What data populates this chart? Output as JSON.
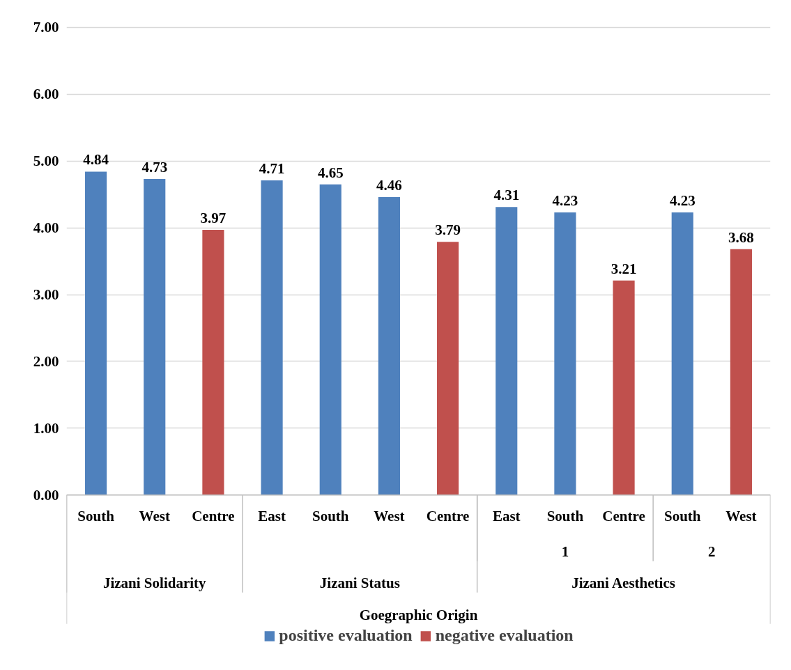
{
  "chart_data": {
    "type": "bar",
    "categories": [
      "South",
      "West",
      "Centre",
      "East",
      "South",
      "West",
      "Centre",
      "East",
      "South",
      "Centre",
      "South",
      "West"
    ],
    "series": [
      {
        "name": "positive evaluation",
        "color": "#4f81bd",
        "values": [
          4.84,
          4.73,
          null,
          4.71,
          4.65,
          4.46,
          null,
          4.31,
          4.23,
          null,
          4.23,
          null
        ]
      },
      {
        "name": "negative evaluation",
        "color": "#c0504d",
        "values": [
          null,
          null,
          3.97,
          null,
          null,
          null,
          3.79,
          null,
          null,
          3.21,
          null,
          3.68
        ]
      }
    ],
    "annotations": [
      "1",
      "2",
      "Jizani Solidarity",
      "Jizani Status",
      "Jizani Aesthetics",
      "Goegraphic Origin"
    ],
    "ylim": [
      0,
      7
    ],
    "yticks": [
      {
        "value": 0,
        "label": "0.00"
      },
      {
        "value": 1,
        "label": "1.00"
      },
      {
        "value": 2,
        "label": "2.00"
      },
      {
        "value": 3,
        "label": "3.00"
      },
      {
        "value": 4,
        "label": "4.00"
      },
      {
        "value": 5,
        "label": "5.00"
      },
      {
        "value": 6,
        "label": "6.00"
      },
      {
        "value": 7,
        "label": "7.00"
      }
    ],
    "grid": "y",
    "data_labels": true,
    "legend": "bottom"
  }
}
